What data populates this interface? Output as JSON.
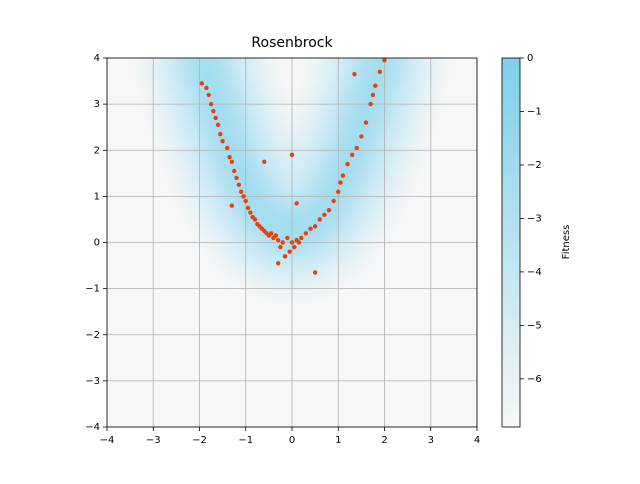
{
  "chart_data": {
    "type": "scatter",
    "title": "Rosenbrock",
    "x": [
      -1.95,
      -1.85,
      -1.8,
      -1.75,
      -1.7,
      -1.65,
      -1.6,
      -1.55,
      -1.5,
      -1.4,
      -1.35,
      -1.3,
      -1.25,
      -1.2,
      -1.15,
      -1.1,
      -1.05,
      -1.0,
      -0.95,
      -0.9,
      -0.85,
      -0.8,
      -0.75,
      -0.7,
      -0.65,
      -0.6,
      -0.55,
      -0.5,
      -0.45,
      -0.4,
      -0.35,
      -0.3,
      -0.25,
      -0.2,
      -0.15,
      -0.1,
      -0.05,
      0.0,
      0.05,
      0.1,
      0.15,
      0.2,
      0.3,
      0.4,
      0.5,
      0.5,
      0.6,
      0.7,
      0.8,
      0.9,
      1.0,
      1.05,
      1.1,
      1.2,
      1.3,
      1.4,
      1.5,
      1.6,
      1.7,
      1.75,
      1.8,
      1.9,
      2.0,
      1.35,
      -0.6,
      0.0,
      -0.3,
      -1.3,
      0.1
    ],
    "y": [
      3.45,
      3.35,
      3.2,
      3.0,
      2.85,
      2.7,
      2.55,
      2.35,
      2.2,
      2.05,
      1.85,
      1.75,
      1.55,
      1.4,
      1.25,
      1.1,
      1.0,
      0.9,
      0.75,
      0.65,
      0.55,
      0.5,
      0.4,
      0.35,
      0.3,
      0.25,
      0.2,
      0.15,
      0.2,
      0.1,
      0.15,
      0.05,
      -0.1,
      0.0,
      -0.3,
      0.1,
      -0.2,
      0.0,
      -0.1,
      0.05,
      0.0,
      0.1,
      0.2,
      0.3,
      -0.65,
      0.35,
      0.5,
      0.6,
      0.7,
      0.9,
      1.1,
      1.3,
      1.45,
      1.7,
      1.9,
      2.05,
      2.3,
      2.6,
      3.0,
      3.2,
      3.4,
      3.7,
      3.95,
      3.65,
      1.75,
      1.9,
      -0.45,
      0.8,
      0.85
    ],
    "color": "#e8400c",
    "xlim": [
      -4,
      4
    ],
    "ylim": [
      -4,
      4
    ],
    "xticks": [
      {
        "value": -4,
        "label": "−4"
      },
      {
        "value": -3,
        "label": "−3"
      },
      {
        "value": -2,
        "label": "−2"
      },
      {
        "value": -1,
        "label": "−1"
      },
      0,
      1,
      2,
      3,
      4
    ],
    "yticks": [
      {
        "value": -4,
        "label": "−4"
      },
      {
        "value": -3,
        "label": "−3"
      },
      {
        "value": -2,
        "label": "−2"
      },
      {
        "value": -1,
        "label": "−1"
      },
      0,
      1,
      2,
      3,
      4
    ],
    "grid": true,
    "colorbar": {
      "label": "Fitness",
      "lim": [
        -6.9,
        0
      ],
      "ticks": [
        0,
        {
          "value": -1,
          "label": "−1"
        },
        {
          "value": -2,
          "label": "−2"
        },
        {
          "value": -3,
          "label": "−3"
        },
        {
          "value": -4,
          "label": "−4"
        },
        {
          "value": -5,
          "label": "−5"
        },
        {
          "value": -6,
          "label": "−6"
        }
      ],
      "colors": [
        "#f7f7f7",
        "#7ecfea"
      ]
    }
  }
}
